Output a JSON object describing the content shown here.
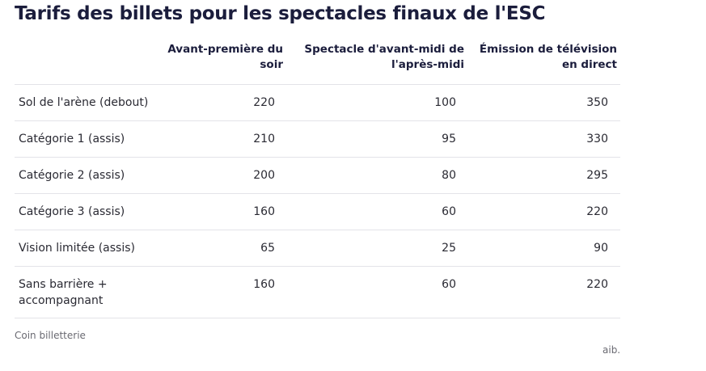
{
  "chart_data": {
    "type": "table",
    "title": "Tarifs des billets pour les spectacles finaux de l'ESC",
    "columns": [
      "",
      "Avant-première du soir",
      "Spectacle d'avant-midi de l'après-midi",
      "Émission de télévision en direct"
    ],
    "rows": [
      {
        "label": "Sol de l'arène (debout)",
        "values": [
          "220",
          "100",
          "350"
        ]
      },
      {
        "label": "Catégorie 1 (assis)",
        "values": [
          "210",
          "95",
          "330"
        ]
      },
      {
        "label": "Catégorie 2 (assis)",
        "values": [
          "200",
          "80",
          "295"
        ]
      },
      {
        "label": "Catégorie 3 (assis)",
        "values": [
          "160",
          "60",
          "220"
        ]
      },
      {
        "label": "Vision limitée (assis)",
        "values": [
          "65",
          "25",
          "90"
        ]
      },
      {
        "label": "Sans barrière + accompagnant",
        "values": [
          "160",
          "60",
          "220"
        ]
      }
    ],
    "source": "Coin billetterie",
    "credit": "aib."
  }
}
